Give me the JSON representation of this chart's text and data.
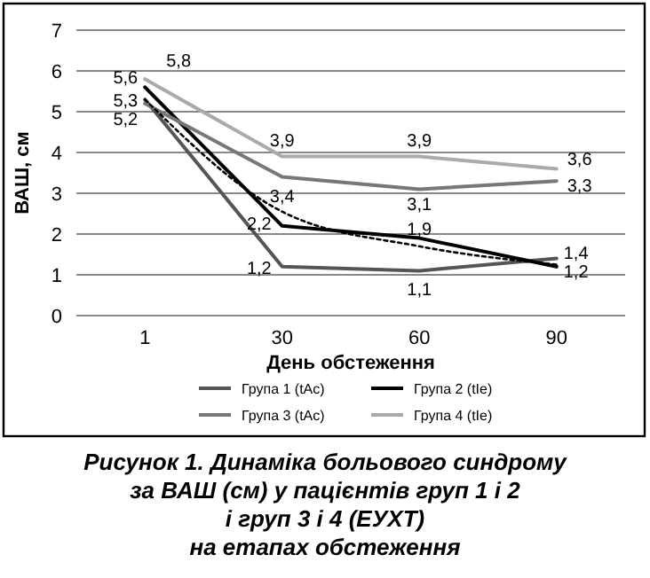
{
  "chart_data": {
    "type": "line",
    "title": "Рисунок 1. Динаміка больового синдрому\nза ВАШ (см) у пацієнтів груп 1 і 2\nі груп 3 і 4 (ЕУХТ)\nна етапах обстеження",
    "xlabel": "День обстеження",
    "ylabel": "ВАШ, см",
    "categories": [
      "1",
      "30",
      "60",
      "90"
    ],
    "series": [
      {
        "name": "Група 1 (tAc)",
        "color": "#555555",
        "values": [
          5.3,
          1.2,
          1.1,
          1.4
        ],
        "value_labels": [
          "5,3",
          "1,2",
          "1,1",
          "1,4"
        ]
      },
      {
        "name": "Група 2 (tIe)",
        "color": "#000000",
        "values": [
          5.6,
          2.2,
          1.9,
          1.2
        ],
        "value_labels": [
          "5,6",
          "2,2",
          "1,9",
          "1,2"
        ]
      },
      {
        "name": "Група 3 (tAc)",
        "color": "#777777",
        "values": [
          5.2,
          3.4,
          3.1,
          3.3
        ],
        "value_labels": [
          "5,2",
          "3,4",
          "3,1",
          "3,3"
        ]
      },
      {
        "name": "Група 4 (tIe)",
        "color": "#aaaaaa",
        "values": [
          5.8,
          3.9,
          3.9,
          3.6
        ],
        "value_labels": [
          "5,8",
          "3,9",
          "3,9",
          "3,6"
        ]
      },
      {
        "color": "#000000",
        "values": [
          5.3,
          2.55,
          1.7,
          1.25
        ],
        "line_style": "dotted"
      }
    ],
    "ylim": [
      0,
      7
    ],
    "yticks": [
      0,
      1,
      2,
      3,
      4,
      5,
      6,
      7
    ],
    "grid": "y",
    "legend": "bottom",
    "marker": "none"
  }
}
